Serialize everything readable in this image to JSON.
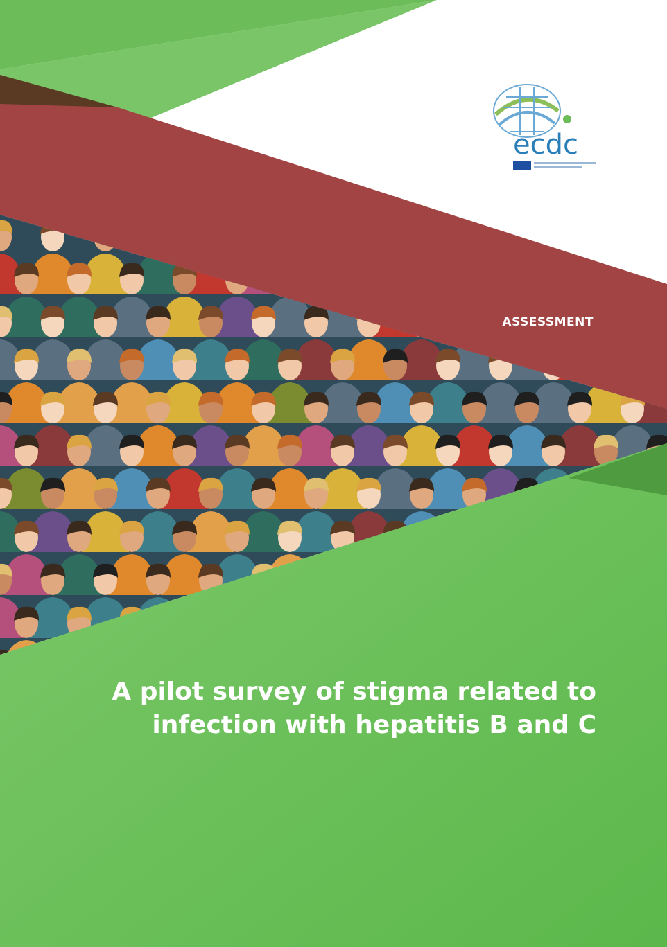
{
  "cover": {
    "section_label": "ASSESSMENT",
    "title_lines": [
      "A pilot survey of stigma related to",
      "infection with hepatitis B and C"
    ],
    "logo_text": "ecdc",
    "colors": {
      "green": "#6cbd5a",
      "dark_green": "#4f9b3f",
      "maroon": "#a24444",
      "brown": "#5a3a22",
      "white": "#ffffff",
      "logo_blue": "#2a7fb8"
    }
  }
}
